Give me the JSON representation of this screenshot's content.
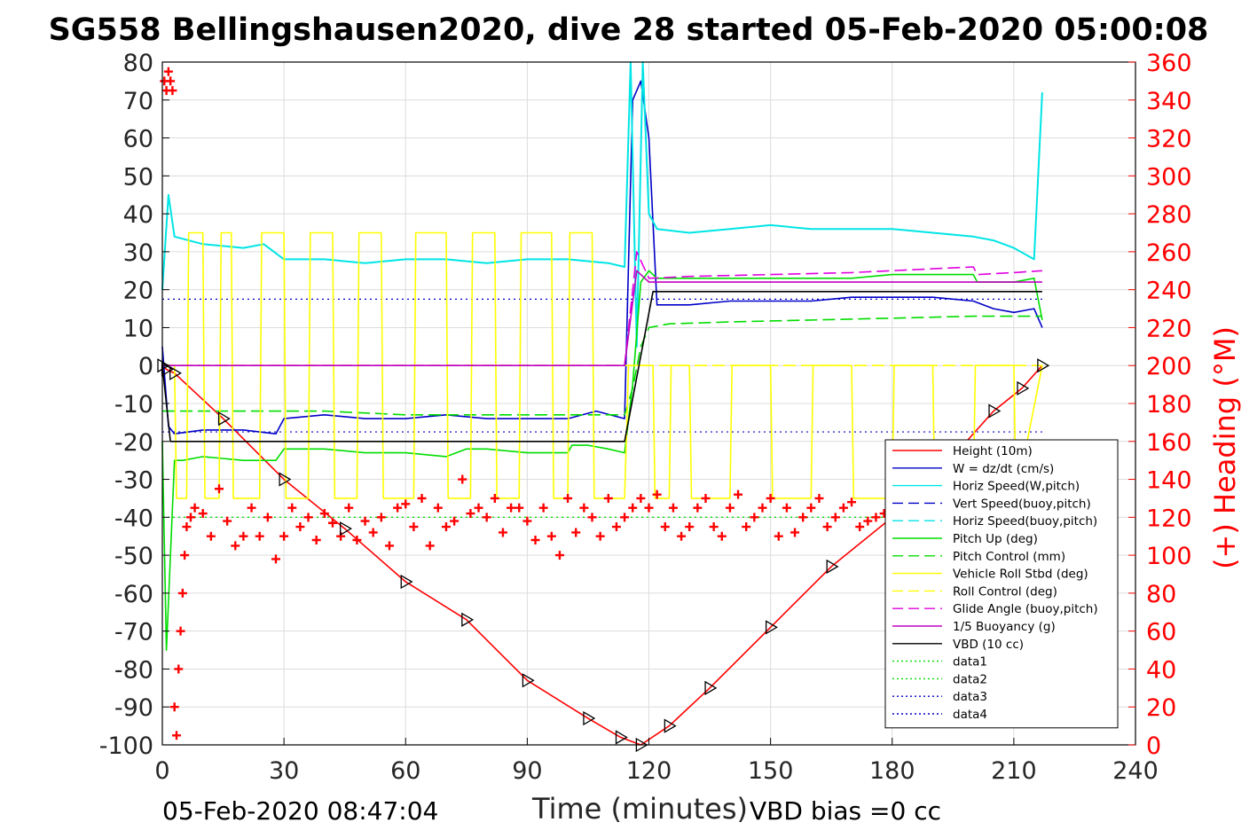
{
  "title": "SG558 Bellingshausen2020, dive 28 started 05-Feb-2020 05:00:08",
  "footer": {
    "timestamp": "05-Feb-2020 08:47:04",
    "vbd_bias": "VBD bias =0 cc"
  },
  "colors": {
    "height": "#ff0000",
    "w": "#0000c8",
    "horiz_speed": "#00e5e5",
    "pitch": "#00dd00",
    "roll": "#ffff00",
    "glide": "#e000e0",
    "buoyancy": "#c000c0",
    "vbd": "#000000",
    "heading": "#ff0000",
    "depth_marker": "#000000",
    "axis": "#000000",
    "right_axis": "#ff0000",
    "grid": "#dcdcdc"
  },
  "chart_data": {
    "type": "line",
    "xlabel": "Time (minutes)",
    "ylabel": "",
    "y2label": "(+) Heading (°M)",
    "xlim": [
      0,
      240
    ],
    "ylim": [
      -100,
      80
    ],
    "y2lim": [
      0,
      360
    ],
    "xticks": [
      0,
      30,
      60,
      90,
      120,
      150,
      180,
      210,
      240
    ],
    "yticks": [
      80,
      70,
      60,
      50,
      40,
      30,
      20,
      10,
      0,
      -10,
      -20,
      -30,
      -40,
      -50,
      -60,
      -70,
      -80,
      -90,
      -100
    ],
    "y2ticks": [
      360,
      340,
      320,
      300,
      280,
      260,
      240,
      220,
      200,
      180,
      160,
      140,
      120,
      100,
      80,
      60,
      40,
      20,
      0
    ],
    "grid": true,
    "legend_position": "bottom-right",
    "legend": [
      {
        "label": "Height (10m)",
        "color": "#ff0000",
        "style": "solid"
      },
      {
        "label": "W = dz/dt (cm/s)",
        "color": "#0000c8",
        "style": "solid"
      },
      {
        "label": "Horiz Speed(W,pitch)",
        "color": "#00e5e5",
        "style": "solid"
      },
      {
        "label": "Vert Speed(buoy,pitch)",
        "color": "#0000c8",
        "style": "dashed"
      },
      {
        "label": "Horiz Speed(buoy,pitch)",
        "color": "#00e5e5",
        "style": "dashed"
      },
      {
        "label": "Pitch Up (deg)",
        "color": "#00dd00",
        "style": "solid"
      },
      {
        "label": "Pitch Control (mm)",
        "color": "#00dd00",
        "style": "dashed"
      },
      {
        "label": "Vehicle Roll Stbd (deg)",
        "color": "#ffff00",
        "style": "solid"
      },
      {
        "label": "Roll Control (deg)",
        "color": "#ffff00",
        "style": "dashed"
      },
      {
        "label": "Glide Angle (buoy,pitch)",
        "color": "#e000e0",
        "style": "dashed"
      },
      {
        "label": "1/5 Buoyancy (g)",
        "color": "#c000c0",
        "style": "solid"
      },
      {
        "label": "VBD (10 cc)",
        "color": "#000000",
        "style": "solid"
      },
      {
        "label": "data1",
        "color": "#00dd00",
        "style": "dotted"
      },
      {
        "label": "data2",
        "color": "#00dd00",
        "style": "dotted"
      },
      {
        "label": "data3",
        "color": "#0000c8",
        "style": "dotted"
      },
      {
        "label": "data4",
        "color": "#0000c8",
        "style": "dotted"
      }
    ],
    "series": [
      {
        "name": "Height (10m)",
        "x": [
          0,
          1,
          3,
          15,
          30,
          45,
          60,
          75,
          90,
          105,
          113,
          118,
          125,
          135,
          150,
          165,
          180,
          195,
          205,
          212,
          217
        ],
        "y": [
          0,
          -1,
          -2,
          -14,
          -30,
          -43,
          -57,
          -67,
          -83,
          -93,
          -98,
          -100,
          -95,
          -85,
          -69,
          -53,
          -40,
          -24,
          -12,
          -6,
          0
        ]
      },
      {
        "name": "W = dz/dt (cm/s)",
        "x": [
          0,
          1.5,
          3,
          10,
          20,
          28,
          30,
          40,
          50,
          60,
          70,
          80,
          90,
          100,
          107,
          114,
          116,
          118,
          120,
          122,
          130,
          140,
          150,
          160,
          170,
          180,
          190,
          200,
          205,
          210,
          215,
          217
        ],
        "y": [
          5,
          -16,
          -18,
          -17,
          -17,
          -18,
          -14,
          -13,
          -14,
          -14,
          -13,
          -14,
          -14,
          -14,
          -12,
          -14,
          70,
          75,
          60,
          16,
          16,
          17,
          17,
          17,
          18,
          18,
          18,
          17,
          15,
          14,
          15,
          10
        ]
      },
      {
        "name": "Horiz Speed(W,pitch)",
        "x": [
          0,
          1.5,
          3,
          10,
          20,
          25,
          30,
          40,
          50,
          60,
          70,
          80,
          90,
          100,
          110,
          114,
          115.5,
          117,
          118.5,
          120,
          122,
          130,
          140,
          150,
          160,
          170,
          180,
          190,
          200,
          205,
          210,
          215,
          217
        ],
        "y": [
          20,
          45,
          34,
          32,
          31,
          32,
          28,
          28,
          27,
          28,
          28,
          27,
          28,
          28,
          27,
          26,
          80,
          5,
          80,
          40,
          36,
          35,
          36,
          37,
          36,
          36,
          36,
          35,
          34,
          33,
          31,
          28,
          72
        ]
      },
      {
        "name": "Pitch Up (deg)",
        "x": [
          0,
          1,
          3,
          5,
          10,
          20,
          28,
          30,
          40,
          50,
          60,
          70,
          75,
          80,
          90,
          100,
          101,
          105,
          110,
          114,
          116,
          118,
          120,
          122,
          130,
          140,
          150,
          160,
          170,
          180,
          190,
          200,
          201,
          210,
          215,
          217
        ],
        "y": [
          -20,
          -75,
          -25,
          -25,
          -24,
          -25,
          -25,
          -22,
          -22,
          -23,
          -23,
          -24,
          -22,
          -22,
          -23,
          -23,
          -21,
          -21,
          -22,
          -23,
          -5,
          22,
          25,
          23,
          23,
          23,
          23,
          23,
          23,
          24,
          24,
          24,
          22,
          22,
          23,
          12
        ]
      },
      {
        "name": "Pitch Control (mm)",
        "x": [
          0,
          3,
          20,
          40,
          60,
          80,
          100,
          114,
          116,
          118,
          120,
          125,
          140,
          160,
          180,
          200,
          210,
          217
        ],
        "y": [
          -12,
          -12,
          -12,
          -12,
          -13,
          -13,
          -13,
          -13,
          -6,
          5,
          10,
          11,
          11.5,
          12,
          12.5,
          13,
          13,
          13
        ]
      },
      {
        "name": "Vehicle Roll Stbd (deg)",
        "x": [
          0,
          3,
          3.5,
          6,
          6.5,
          10,
          10.5,
          14,
          14.5,
          17,
          17.5,
          24,
          24.5,
          30,
          30.5,
          36,
          36.5,
          42,
          42.5,
          48,
          48.5,
          54,
          54.5,
          62,
          62.5,
          70,
          70.5,
          76,
          76.5,
          82,
          82.5,
          88,
          88.5,
          96,
          96.5,
          100,
          100.5,
          106,
          106.5,
          114,
          115,
          118,
          121,
          121.5,
          125,
          125.5,
          130,
          130.5,
          140,
          140.5,
          150,
          150.5,
          160,
          160.5,
          170,
          170.5,
          180,
          180.5,
          190,
          190.5,
          200,
          200.5,
          210,
          210.5,
          217
        ],
        "y": [
          0,
          0,
          -35,
          -35,
          35,
          35,
          -35,
          -35,
          35,
          35,
          -35,
          -35,
          35,
          35,
          -35,
          -35,
          35,
          35,
          -35,
          -35,
          35,
          35,
          -35,
          -35,
          35,
          35,
          -35,
          -35,
          35,
          35,
          -35,
          -35,
          35,
          35,
          -35,
          -35,
          35,
          35,
          -35,
          -35,
          0,
          0,
          0,
          -35,
          -35,
          0,
          0,
          -35,
          -35,
          0,
          0,
          -35,
          -35,
          0,
          0,
          -35,
          -35,
          0,
          0,
          -35,
          -35,
          0,
          0,
          -35,
          0
        ]
      },
      {
        "name": "Roll Control (deg)",
        "x": [
          0,
          3,
          114,
          120,
          217
        ],
        "y": [
          0,
          0,
          0,
          0,
          0
        ]
      },
      {
        "name": "Glide Angle (buoy,pitch)",
        "x": [
          0,
          3,
          114,
          117,
          120,
          130,
          150,
          170,
          190,
          200,
          201,
          210,
          217
        ],
        "y": [
          0,
          0,
          0,
          30,
          23,
          23.5,
          24,
          24.5,
          25.5,
          26,
          24,
          24.5,
          25
        ]
      },
      {
        "name": "1/5 Buoyancy (g)",
        "x": [
          0,
          3,
          114,
          117,
          120,
          217
        ],
        "y": [
          0,
          0,
          0,
          25,
          22,
          22
        ]
      },
      {
        "name": "VBD (10 cc)",
        "x": [
          0,
          2,
          114,
          121,
          217
        ],
        "y": [
          0,
          -20,
          -20,
          19.5,
          19.5
        ]
      }
    ],
    "reference_lines": [
      {
        "name": "data1",
        "y": -40
      },
      {
        "name": "data2",
        "y": -40
      },
      {
        "name": "data3",
        "y": 17.5
      },
      {
        "name": "data4",
        "y": -17.5
      }
    ],
    "heading_series": {
      "name": "Heading (°M)",
      "x": [
        0.5,
        1,
        1.5,
        2,
        2.5,
        3,
        3.5,
        4,
        4.5,
        5,
        5.5,
        6,
        7,
        8,
        10,
        12,
        14,
        16,
        18,
        20,
        22,
        24,
        26,
        28,
        30,
        32,
        34,
        36,
        38,
        40,
        42,
        44,
        46,
        48,
        50,
        52,
        54,
        56,
        58,
        60,
        62,
        64,
        66,
        68,
        70,
        72,
        74,
        76,
        78,
        80,
        82,
        84,
        86,
        88,
        90,
        92,
        94,
        96,
        98,
        100,
        102,
        104,
        106,
        108,
        110,
        112,
        114,
        116,
        118,
        120,
        122,
        124,
        126,
        128,
        130,
        132,
        134,
        136,
        138,
        140,
        142,
        144,
        146,
        148,
        150,
        152,
        154,
        156,
        158,
        160,
        162,
        164,
        166,
        168,
        170,
        172,
        174,
        176,
        178,
        180
      ],
      "y": [
        350,
        345,
        355,
        350,
        345,
        20,
        5,
        40,
        60,
        80,
        100,
        115,
        120,
        125,
        122,
        110,
        135,
        118,
        105,
        110,
        125,
        110,
        120,
        98,
        110,
        125,
        115,
        120,
        108,
        122,
        117,
        110,
        125,
        108,
        118,
        112,
        120,
        105,
        125,
        127,
        115,
        130,
        105,
        125,
        115,
        118,
        140,
        122,
        125,
        120,
        130,
        112,
        125,
        125,
        118,
        108,
        125,
        110,
        100,
        130,
        112,
        125,
        120,
        110,
        130,
        115,
        120,
        125,
        130,
        125,
        132,
        115,
        125,
        110,
        115,
        125,
        130,
        115,
        110,
        125,
        132,
        115,
        120,
        125,
        130,
        110,
        125,
        112,
        120,
        125,
        130,
        115,
        120,
        125,
        128,
        115,
        118,
        120,
        122,
        125
      ]
    }
  }
}
